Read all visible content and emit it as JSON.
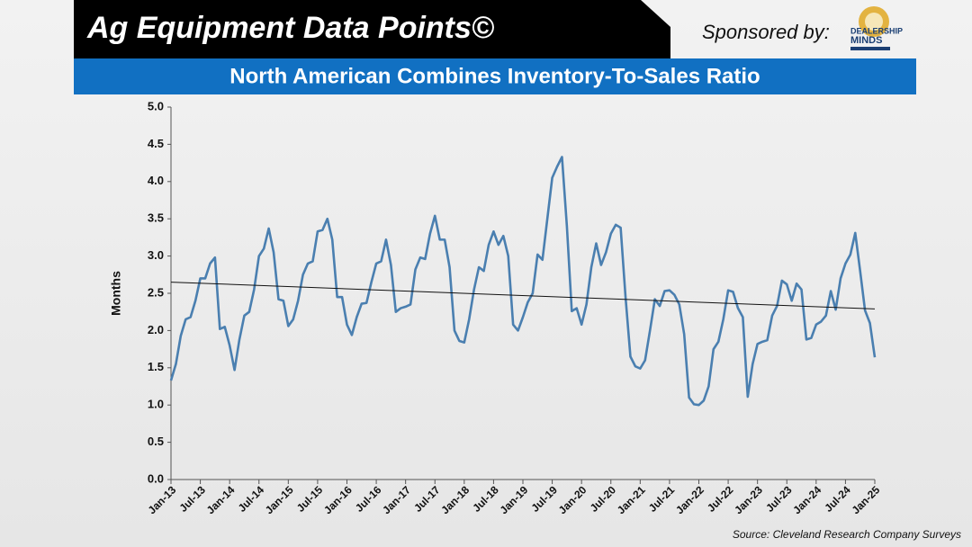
{
  "header": {
    "title": "Ag Equipment Data Points©",
    "sponsor": "Sponsored by:",
    "logo_line1": "DEALERSHIP",
    "logo_line2": "MINDS"
  },
  "chart_data": {
    "type": "line",
    "title": "North American Combines Inventory-To-Sales Ratio",
    "y_label": "Months",
    "source": "Source: Cleveland Research Company Surveys",
    "categories": [
      "Jan-13",
      null,
      null,
      null,
      null,
      null,
      "Jul-13",
      null,
      null,
      null,
      null,
      null,
      "Jan-14",
      null,
      null,
      null,
      null,
      null,
      "Jul-14",
      null,
      null,
      null,
      null,
      null,
      "Jan-15",
      null,
      null,
      null,
      null,
      null,
      "Jul-15",
      null,
      null,
      null,
      null,
      null,
      "Jan-16",
      null,
      null,
      null,
      null,
      null,
      "Jul-16",
      null,
      null,
      null,
      null,
      null,
      "Jan-17",
      null,
      null,
      null,
      null,
      null,
      "Jul-17",
      null,
      null,
      null,
      null,
      null,
      "Jan-18",
      null,
      null,
      null,
      null,
      null,
      "Jul-18",
      null,
      null,
      null,
      null,
      null,
      "Jan-19",
      null,
      null,
      null,
      null,
      null,
      "Jul-19",
      null,
      null,
      null,
      null,
      null,
      "Jan-20",
      null,
      null,
      null,
      null,
      null,
      "Jul-20",
      null,
      null,
      null,
      null,
      null,
      "Jan-21",
      null,
      null,
      null,
      null,
      null,
      "Jul-21",
      null,
      null,
      null,
      null,
      null,
      "Jan-22",
      null,
      null,
      null,
      null,
      null,
      "Jul-22",
      null,
      null,
      null,
      null,
      null,
      "Jan-23",
      null,
      null,
      null,
      null,
      null,
      "Jul-23",
      null,
      null,
      null,
      null,
      null,
      "Jan-24",
      null,
      null,
      null,
      null,
      null,
      "Jul-24",
      null,
      null,
      null,
      null,
      null,
      "Jan-25"
    ],
    "series": [
      {
        "color": "#4a7fb0",
        "values": [
          1.33,
          1.55,
          1.93,
          2.15,
          2.18,
          2.4,
          2.7,
          2.7,
          2.9,
          2.98,
          2.02,
          2.05,
          1.8,
          1.47,
          1.88,
          2.2,
          2.25,
          2.55,
          3.0,
          3.1,
          3.37,
          3.05,
          2.42,
          2.4,
          2.06,
          2.15,
          2.4,
          2.75,
          2.9,
          2.93,
          3.33,
          3.35,
          3.5,
          3.22,
          2.45,
          2.45,
          2.08,
          1.94,
          2.18,
          2.36,
          2.37,
          2.65,
          2.9,
          2.93,
          3.22,
          2.88,
          2.25,
          2.3,
          2.32,
          2.35,
          2.82,
          2.98,
          2.96,
          3.3,
          3.54,
          3.22,
          3.22,
          2.85,
          2.0,
          1.86,
          1.84,
          2.15,
          2.55,
          2.85,
          2.8,
          3.15,
          3.33,
          3.15,
          3.27,
          3.0,
          2.08,
          2.0,
          2.18,
          2.38,
          2.5,
          3.02,
          2.95,
          3.5,
          4.05,
          4.2,
          4.33,
          3.4,
          2.26,
          2.3,
          2.08,
          2.35,
          2.85,
          3.17,
          2.88,
          3.05,
          3.3,
          3.42,
          3.38,
          2.45,
          1.65,
          1.52,
          1.49,
          1.6,
          2.0,
          2.42,
          2.33,
          2.53,
          2.54,
          2.48,
          2.35,
          1.95,
          1.1,
          1.01,
          1.0,
          1.06,
          1.25,
          1.75,
          1.85,
          2.15,
          2.54,
          2.52,
          2.3,
          2.18,
          1.11,
          1.55,
          1.82,
          1.85,
          1.87,
          2.2,
          2.33,
          2.67,
          2.62,
          2.4,
          2.63,
          2.55,
          1.88,
          1.9,
          2.08,
          2.12,
          2.2,
          2.53,
          2.28,
          2.7,
          2.9,
          3.02,
          3.31,
          2.8,
          2.27,
          2.1,
          1.64
        ]
      }
    ],
    "trendline": {
      "color": "#111111",
      "start": 2.65,
      "end": 2.29
    },
    "ylim": [
      0,
      5
    ],
    "yticks": [
      {
        "value": 0,
        "label": "0.0"
      },
      0.5,
      {
        "value": 1,
        "label": "1.0"
      },
      1.5,
      {
        "value": 2,
        "label": "2.0"
      },
      2.5,
      {
        "value": 3,
        "label": "3.0"
      },
      3.5,
      {
        "value": 4,
        "label": "4.0"
      },
      4.5,
      {
        "value": 5,
        "label": "5.0"
      }
    ],
    "grid": false
  }
}
